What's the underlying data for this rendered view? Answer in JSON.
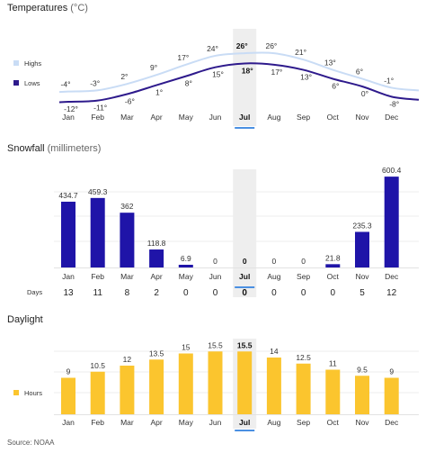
{
  "source": "Source: NOAA",
  "months": [
    "Jan",
    "Feb",
    "Mar",
    "Apr",
    "May",
    "Jun",
    "Jul",
    "Aug",
    "Sep",
    "Oct",
    "Nov",
    "Dec"
  ],
  "highlight_month": "Jul",
  "colors": {
    "highs": "#c9dcf5",
    "lows": "#2e1a8c",
    "snowfall": "#1f14a8",
    "daylight": "#fbc52e",
    "highlight_band": "#eeeeee",
    "highlight_marker": "#4a90e2"
  },
  "chart_data": [
    {
      "type": "line",
      "title": "Temperatures",
      "unit": "(°C)",
      "categories": [
        "Jan",
        "Feb",
        "Mar",
        "Apr",
        "May",
        "Jun",
        "Jul",
        "Aug",
        "Sep",
        "Oct",
        "Nov",
        "Dec"
      ],
      "series": [
        {
          "name": "Highs",
          "values": [
            -4,
            -3,
            2,
            9,
            17,
            24,
            26,
            26,
            21,
            13,
            6,
            -1
          ],
          "labels": [
            "-4°",
            "-3°",
            "2°",
            "9°",
            "17°",
            "24°",
            "26°",
            "26°",
            "21°",
            "13°",
            "6°",
            "-1°"
          ]
        },
        {
          "name": "Lows",
          "values": [
            -12,
            -11,
            -6,
            1,
            8,
            15,
            18,
            17,
            13,
            6,
            0,
            -8
          ],
          "labels": [
            "-12°",
            "-11°",
            "-6°",
            "1°",
            "8°",
            "15°",
            "18°",
            "17°",
            "13°",
            "6°",
            "0°",
            "-8°"
          ]
        }
      ],
      "legend": "left"
    },
    {
      "type": "bar",
      "title": "Snowfall",
      "unit": "(millimeters)",
      "categories": [
        "Jan",
        "Feb",
        "Mar",
        "Apr",
        "May",
        "Jun",
        "Jul",
        "Aug",
        "Sep",
        "Oct",
        "Nov",
        "Dec"
      ],
      "values": [
        434.7,
        459.3,
        362,
        118.8,
        6.9,
        0,
        0,
        0,
        0,
        21.8,
        235.3,
        600.4
      ],
      "labels": [
        "434.7",
        "459.3",
        "362",
        "118.8",
        "6.9",
        "0",
        "0",
        "0",
        "0",
        "21.8",
        "235.3",
        "600.4"
      ],
      "days_label": "Days",
      "days": [
        "13",
        "11",
        "8",
        "2",
        "0",
        "0",
        "0",
        "0",
        "0",
        "0",
        "5",
        "12"
      ]
    },
    {
      "type": "bar",
      "title": "Daylight",
      "categories": [
        "Jan",
        "Feb",
        "Mar",
        "Apr",
        "May",
        "Jun",
        "Jul",
        "Aug",
        "Sep",
        "Oct",
        "Nov",
        "Dec"
      ],
      "series": [
        {
          "name": "Hours",
          "values": [
            9,
            10.5,
            12,
            13.5,
            15,
            15.5,
            15.5,
            14,
            12.5,
            11,
            9.5,
            9
          ],
          "labels": [
            "9",
            "10.5",
            "12",
            "13.5",
            "15",
            "15.5",
            "15.5",
            "14",
            "12.5",
            "11",
            "9.5",
            "9"
          ]
        }
      ],
      "legend": "left"
    }
  ]
}
